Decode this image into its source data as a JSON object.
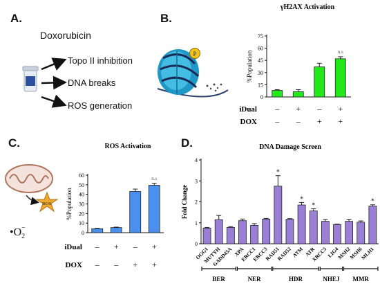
{
  "panels": {
    "a": {
      "label": "A.",
      "drug": "Doxorubicin",
      "effects": [
        "Topo II inhibition",
        "DNA breaks",
        "ROS generation"
      ]
    },
    "b": {
      "label": "B."
    },
    "c": {
      "label": "C.",
      "ros_badge": "ROS",
      "superoxide": "•O",
      "superoxide_sub": "2",
      "superoxide_sup": "−"
    },
    "d": {
      "label": "D."
    }
  },
  "chart_data": [
    {
      "id": "gh2ax",
      "type": "bar",
      "title": "γH2AX Activation",
      "ylabel": "%Population",
      "ylim": [
        0,
        75
      ],
      "yticks": [
        0,
        15,
        30,
        45,
        60,
        75
      ],
      "color": "#22e81a",
      "values": [
        8,
        6.5,
        37,
        47
      ],
      "errors": [
        1,
        2.5,
        4.5,
        2.5
      ],
      "annotations": [
        "",
        "",
        "",
        "n.s"
      ],
      "conditions": [
        {
          "label": "iDual",
          "values": [
            "–",
            "+",
            "–",
            "+"
          ]
        },
        {
          "label": "DOX",
          "values": [
            "–",
            "–",
            "+",
            "+"
          ]
        }
      ]
    },
    {
      "id": "ros",
      "type": "bar",
      "title": "ROS Activation",
      "ylabel": "%Population",
      "ylim": [
        0,
        60
      ],
      "yticks": [
        0,
        10,
        20,
        30,
        40,
        50,
        60
      ],
      "color": "#4a90ee",
      "values": [
        4.2,
        5.3,
        43,
        49.5
      ],
      "errors": [
        0.4,
        0.5,
        2.5,
        2
      ],
      "annotations": [
        "",
        "",
        "",
        "n.s"
      ],
      "conditions": [
        {
          "label": "iDual",
          "values": [
            "–",
            "+",
            "–",
            "+"
          ]
        },
        {
          "label": "DOX",
          "values": [
            "–",
            "–",
            "+",
            "+"
          ]
        }
      ]
    },
    {
      "id": "dna-damage",
      "type": "bar",
      "title": "DNA Damage Screen",
      "ylabel": "Fold Change",
      "ylim": [
        0,
        4
      ],
      "yticks": [
        0,
        1,
        2,
        3,
        4
      ],
      "color": "#9b7fd6",
      "categories": [
        "OGG1",
        "MUTYH",
        "GADD45A",
        "XPA",
        "ERCC1",
        "ERCC3",
        "RAD51",
        "RAD52",
        "ATM",
        "ATR",
        "XRCC5",
        "LIG4",
        "MSH2",
        "MSH6",
        "MLH1"
      ],
      "values": [
        0.75,
        1.15,
        0.78,
        1.1,
        0.88,
        1.18,
        2.75,
        1.17,
        1.85,
        1.57,
        1.07,
        0.92,
        1.07,
        1.03,
        1.8
      ],
      "errors": [
        0.03,
        0.2,
        0.04,
        0.08,
        0.08,
        0.03,
        0.5,
        0.03,
        0.12,
        0.1,
        0.09,
        0.02,
        0.1,
        0.06,
        0.06
      ],
      "annotations": [
        "",
        "",
        "",
        "",
        "",
        "",
        "*",
        "",
        "*",
        "*",
        "",
        "",
        "",
        "",
        "*"
      ],
      "groups": [
        {
          "name": "BER",
          "start": 0,
          "end": 2
        },
        {
          "name": "NER",
          "start": 3,
          "end": 5
        },
        {
          "name": "HDR",
          "start": 6,
          "end": 9
        },
        {
          "name": "NHEJ",
          "start": 10,
          "end": 11
        },
        {
          "name": "MMR",
          "start": 12,
          "end": 14
        }
      ]
    }
  ]
}
